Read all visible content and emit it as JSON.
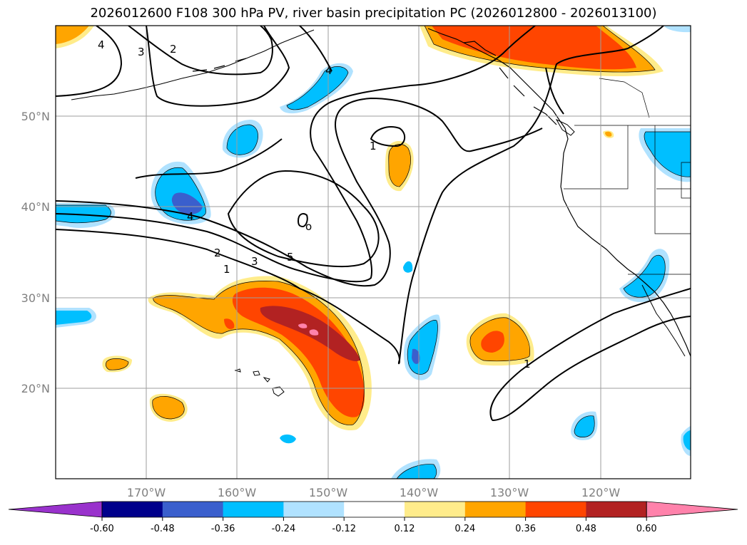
{
  "title": "2026012600 F108 300 hPa PV, river basin precipitation PC (2026012800 - 2026013100)",
  "map": {
    "projection": "cylindrical",
    "lon_range": [
      -180,
      -110
    ],
    "lat_range": [
      10,
      60
    ],
    "lat_labels": [
      "20°N",
      "30°N",
      "40°N",
      "50°N"
    ],
    "lon_labels": [
      "170°W",
      "160°W",
      "150°W",
      "140°W",
      "130°W",
      "120°W"
    ]
  },
  "pv_contour_labels": [
    "4",
    "3",
    "2",
    "4",
    "1",
    "4",
    "2",
    "3",
    "5",
    "1",
    "1",
    "o"
  ],
  "colorbar": {
    "ticks": [
      "-0.60",
      "-0.48",
      "-0.36",
      "-0.24",
      "-0.12",
      "0.12",
      "0.24",
      "0.36",
      "0.48",
      "0.60"
    ],
    "colors": [
      "#9932cc",
      "#00008b",
      "#3a5fcd",
      "#00bfff",
      "#b0e2ff",
      "#ffffff",
      "#ffec8b",
      "#ffa500",
      "#ff4500",
      "#b22222",
      "#ff82ab"
    ],
    "extend": "both"
  }
}
